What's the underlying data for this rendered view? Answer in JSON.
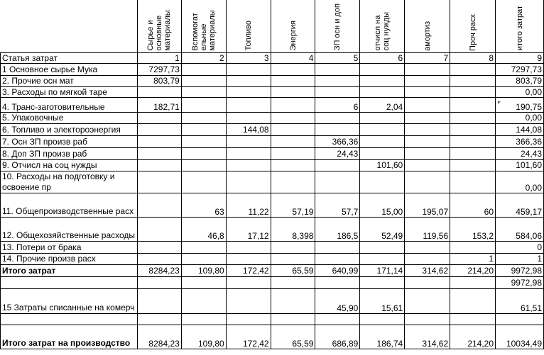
{
  "header": {
    "columns": [
      "Сырье и основные материалы",
      "Вспомогат ельные материалы",
      "Топливо",
      "Энергия",
      "ЗП осн и доп",
      "отчисл на соц нужды",
      "амортиз",
      "Проч расх",
      "итого затрат"
    ]
  },
  "numbering": {
    "label": "Статья затрат",
    "nums": [
      "1",
      "2",
      "3",
      "4",
      "5",
      "6",
      "7",
      "8",
      "9"
    ]
  },
  "rows": [
    {
      "label": "1 Основное сырье Мука",
      "v": [
        "7297,73",
        "",
        "",
        "",
        "",
        "",
        "",
        "",
        "7297,73"
      ]
    },
    {
      "label": "2. Прочие осн мат",
      "v": [
        "803,79",
        "",
        "",
        "",
        "",
        "",
        "",
        "",
        "803,79"
      ]
    },
    {
      "label": "3. Расходы по мягкой таре",
      "v": [
        "",
        "",
        "",
        "",
        "",
        "",
        "",
        "",
        "0,00"
      ]
    },
    {
      "label": "4. Транс-заготовительные",
      "v": [
        "182,71",
        "",
        "",
        "",
        "6",
        "2,04",
        "",
        "",
        "190,75"
      ]
    },
    {
      "label": "5. Упаковочные",
      "v": [
        "",
        "",
        "",
        "",
        "",
        "",
        "",
        "",
        "0,00"
      ]
    },
    {
      "label": "6. Топливо и электороэнергия",
      "v": [
        "",
        "",
        "144,08",
        "",
        "",
        "",
        "",
        "",
        "144,08"
      ]
    },
    {
      "label": "7. Осн ЗП произв раб",
      "v": [
        "",
        "",
        "",
        "",
        "366,36",
        "",
        "",
        "",
        "366,36"
      ]
    },
    {
      "label": "8. Доп ЗП произв раб",
      "v": [
        "",
        "",
        "",
        "",
        "24,43",
        "",
        "",
        "",
        "24,43"
      ]
    },
    {
      "label": "9. Отчисл на соц нужды",
      "v": [
        "",
        "",
        "",
        "",
        "",
        "101,60",
        "",
        "",
        "101,60"
      ]
    },
    {
      "label": "10. Расходы на подготовку и освоение пр",
      "v": [
        "",
        "",
        "",
        "",
        "",
        "",
        "",
        "",
        "0,00"
      ]
    },
    {
      "label": "11. Общепроизводственные расх",
      "v": [
        "",
        "63",
        "11,22",
        "57,19",
        "57,7",
        "15,00",
        "195,07",
        "60",
        "459,17"
      ]
    },
    {
      "label": "12. Общехозяйственные расходы",
      "v": [
        "",
        "46,8",
        "17,12",
        "8,398",
        "186,5",
        "52,49",
        "119,56",
        "153,2",
        "584,06"
      ]
    },
    {
      "label": "13. Потери от брака",
      "v": [
        "",
        "",
        "",
        "",
        "",
        "",
        "",
        "",
        "0"
      ]
    },
    {
      "label": "14. Прочие произв расх",
      "v": [
        "",
        "",
        "",
        "",
        "",
        "",
        "",
        "1",
        "1"
      ]
    }
  ],
  "total": {
    "label": "Итого затрат",
    "v": [
      "8284,23",
      "109,80",
      "172,42",
      "65,59",
      "640,99",
      "171,14",
      "314,62",
      "214,20",
      "9972,98"
    ]
  },
  "total_repeat": "9972,98",
  "row15": {
    "label": "15 Затраты списанные на комерч",
    "v": [
      "",
      "",
      "",
      "",
      "45,90",
      "15,61",
      "",
      "",
      "61,51"
    ]
  },
  "final": {
    "label": "Итого затрат на производство",
    "v": [
      "8284,23",
      "109,80",
      "172,42",
      "65,59",
      "686,89",
      "186,74",
      "314,62",
      "214,20",
      "10034,49"
    ]
  }
}
